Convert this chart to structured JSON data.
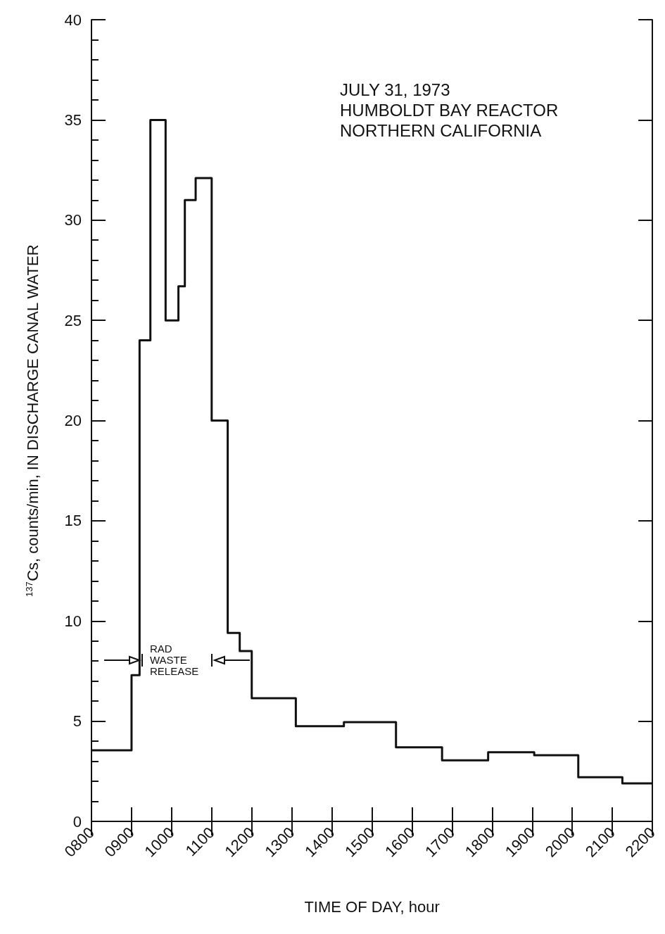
{
  "chart_data": {
    "type": "step",
    "xlabel": "TIME OF DAY, hour",
    "ylabel": "$^{137}$Cs, counts/min, IN DISCHARGE CANAL WATER",
    "x": [
      800,
      900,
      920,
      947,
      985,
      1017,
      1033,
      1060,
      1100,
      1140,
      1170,
      1200,
      1310,
      1430,
      1560,
      1675,
      1790,
      1905,
      2015,
      2125,
      2200
    ],
    "series": [
      {
        "color": "#111111",
        "values": [
          3.55,
          7.3,
          24,
          35,
          25,
          26.7,
          31,
          32.1,
          20,
          9.4,
          8.5,
          6.15,
          4.75,
          4.95,
          3.7,
          3.05,
          3.45,
          3.3,
          2.2,
          1.9,
          1.9
        ]
      }
    ],
    "xlim": [
      800,
      2200
    ],
    "xticks": [
      {
        "value": 800,
        "label": "0800"
      },
      {
        "value": 900,
        "label": "0900"
      },
      1000,
      1100,
      1200,
      1300,
      1400,
      1500,
      1600,
      1700,
      1800,
      1900,
      2000,
      2100,
      2200
    ],
    "ylim": [
      0,
      40
    ],
    "yticks": [
      0,
      5,
      10,
      15,
      20,
      25,
      30,
      35,
      40
    ],
    "grid": false,
    "marker": "none",
    "line_style": "solid",
    "annotations": [
      "JULY 31, 1973",
      "HUMBOLDT BAY REACTOR",
      "NORTHERN CALIFORNIA",
      "RAD WASTE RELEASE"
    ]
  }
}
